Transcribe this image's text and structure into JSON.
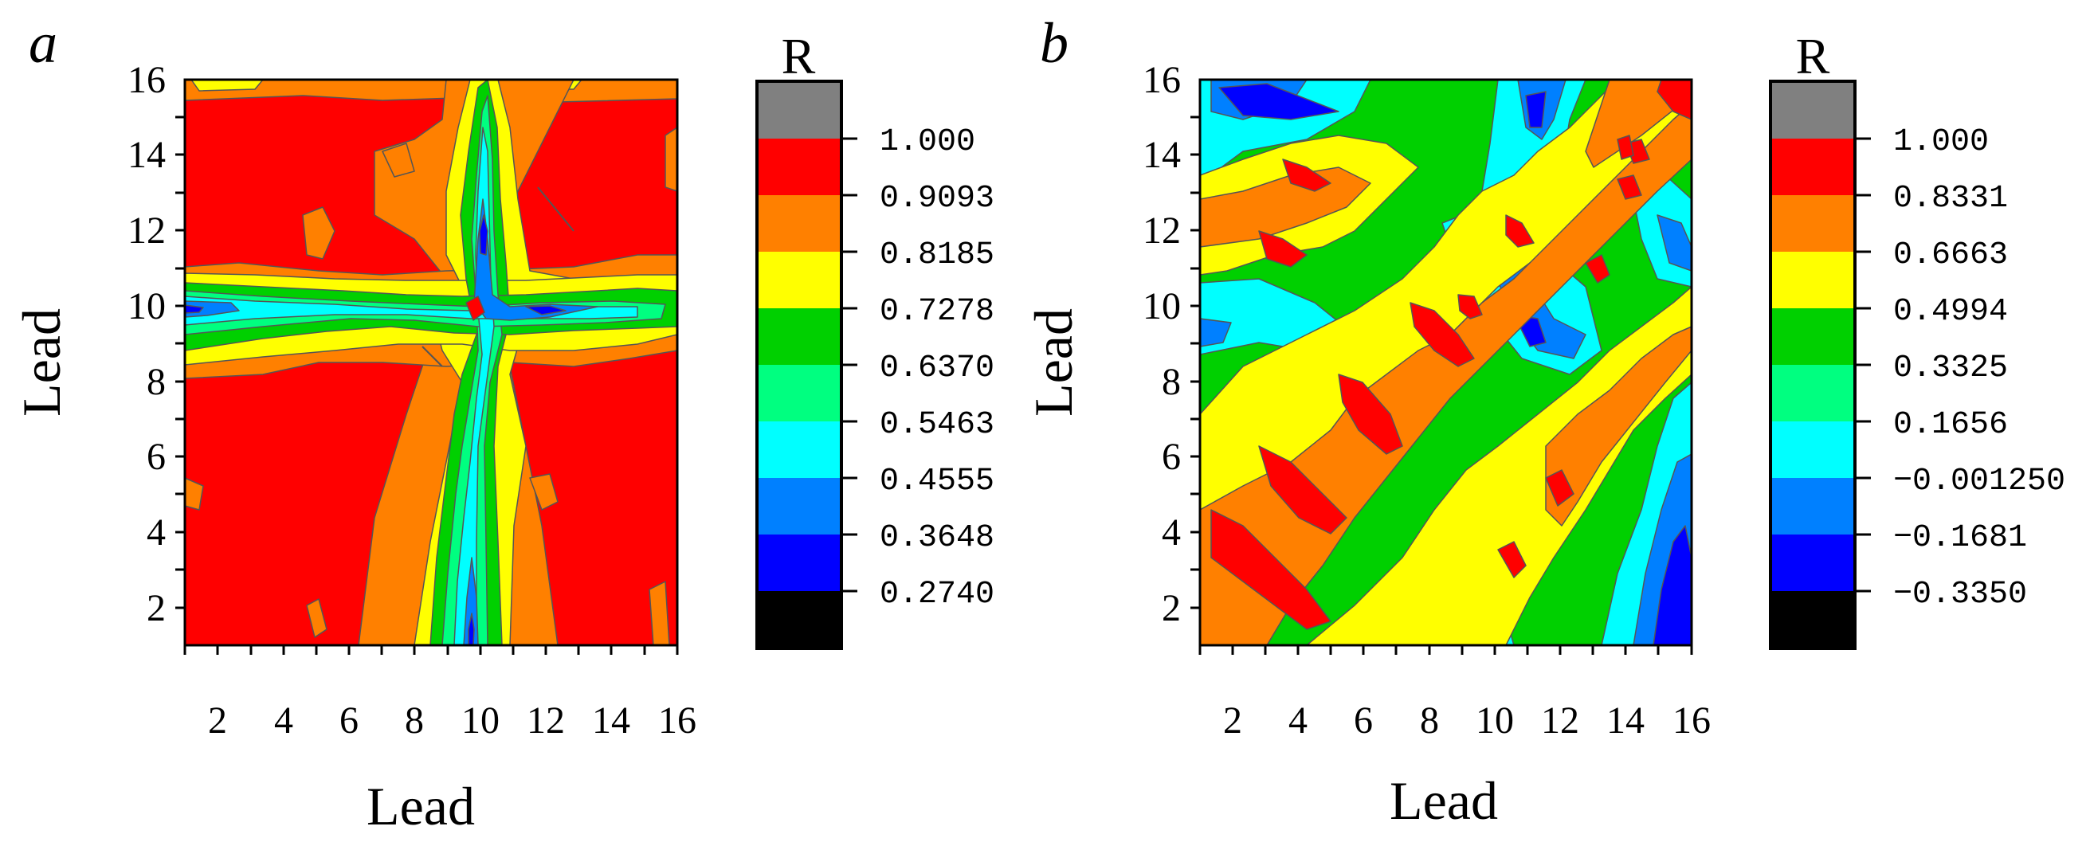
{
  "chart_data": [
    {
      "type": "heatmap",
      "panel_label": "a",
      "xlabel": "Lead",
      "ylabel": "Lead",
      "x_ticks": [
        "2",
        "4",
        "6",
        "8",
        "10",
        "12",
        "14",
        "16"
      ],
      "y_ticks": [
        "2",
        "4",
        "6",
        "8",
        "10",
        "12",
        "14",
        "16"
      ],
      "xlim": [
        1,
        16
      ],
      "ylim": [
        1,
        16
      ],
      "colorbar": {
        "title": "R",
        "levels": [
          "1.000",
          "0.9093",
          "0.8185",
          "0.7278",
          "0.6370",
          "0.5463",
          "0.4555",
          "0.3648",
          "0.2740"
        ],
        "colors": [
          "#808080",
          "#ff0000",
          "#ff8000",
          "#ffff00",
          "#00d000",
          "#00ff80",
          "#00ffff",
          "#0080ff",
          "#0000ff",
          "#000000"
        ]
      },
      "description": "Correlation between forecast leads; high R (red) everywhere except a low-correlation cross centred on lead 10"
    },
    {
      "type": "heatmap",
      "panel_label": "b",
      "xlabel": "Lead",
      "ylabel": "Lead",
      "x_ticks": [
        "2",
        "4",
        "6",
        "8",
        "10",
        "12",
        "14",
        "16"
      ],
      "y_ticks": [
        "2",
        "4",
        "6",
        "8",
        "10",
        "12",
        "14",
        "16"
      ],
      "xlim": [
        1,
        16
      ],
      "ylim": [
        1,
        16
      ],
      "colorbar": {
        "title": "R",
        "levels": [
          "1.000",
          "0.8331",
          "0.6663",
          "0.4994",
          "0.3325",
          "0.1656",
          "−0.001250",
          "−0.1681",
          "−0.3350"
        ],
        "colors": [
          "#808080",
          "#ff0000",
          "#ff8000",
          "#ffff00",
          "#00d000",
          "#00ff80",
          "#00ffff",
          "#0080ff",
          "#0000ff",
          "#000000"
        ]
      },
      "description": "Oscillating diagonal band pattern of correlation between leads"
    }
  ]
}
